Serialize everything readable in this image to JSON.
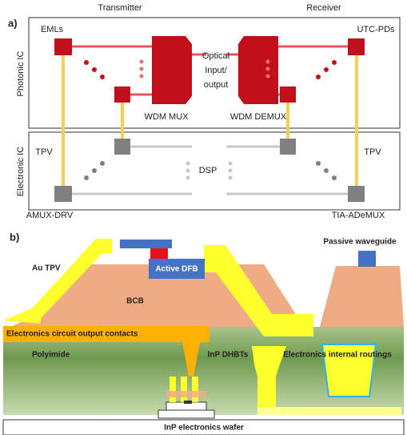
{
  "panel_a": {
    "label": "a)",
    "transmitter": "Transmitter",
    "receiver": "Receiver",
    "photonic_ic": "Photonic IC",
    "electronic_ic": "Electronic IC",
    "emls": "EMLs",
    "utc_pds": "UTC-PDs",
    "optical_io": [
      "Optical",
      "Input/",
      "output"
    ],
    "wdm_mux": "WDM MUX",
    "wdm_demux": "WDM DEMUX",
    "tpv_left": "TPV",
    "tpv_right": "TPV",
    "dsp": "DSP",
    "amux_drv": "AMUX-DRV",
    "tia_ademux": "TIA-ADeMUX"
  },
  "panel_b": {
    "label": "b)",
    "passive_waveguide": "Passive waveguide",
    "au_tpv": "Au TPV",
    "active_dfb": "Active DFB",
    "bcb": "BCB",
    "output_contacts": "Electronics circuit output contacts",
    "polyimide": "Polyimide",
    "inp_dhbts": "InP DHBTs",
    "internal_routings": "Electronics internal routings",
    "wafer": "InP electronics wafer"
  }
}
